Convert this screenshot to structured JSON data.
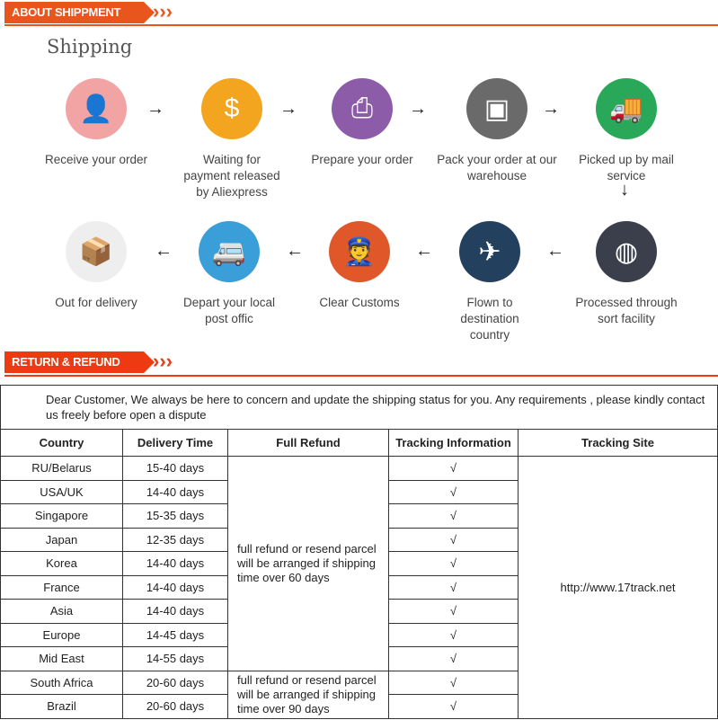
{
  "shipment_banner": "ABOUT SHIPPMENT",
  "shipping_title": "Shipping",
  "steps": [
    {
      "label": "Receive your order",
      "icon": "person-at-desk-icon",
      "color": "#f2a3a3"
    },
    {
      "label": "Waiting for payment released by Aliexpress",
      "icon": "money-bag-icon",
      "color": "#f3a51f"
    },
    {
      "label": "Prepare your order",
      "icon": "printer-icon",
      "color": "#8c5ca8"
    },
    {
      "label": "Pack your order at our warehouse",
      "icon": "package-worker-icon",
      "color": "#6a6a6a"
    },
    {
      "label": "Picked up by mail service",
      "icon": "truck-icon",
      "color": "#2aa85a"
    },
    {
      "label": "Processed through sort facility",
      "icon": "globe-icon",
      "color": "#3b3f4c"
    },
    {
      "label": "Flown to destination country",
      "icon": "airplane-icon",
      "color": "#23405e"
    },
    {
      "label": "Clear  Customs",
      "icon": "customs-officer-icon",
      "color": "#e0582a"
    },
    {
      "label": "Depart your local post offic",
      "icon": "van-icon",
      "color": "#3a9fd8"
    },
    {
      "label": "Out for delivery",
      "icon": "parcel-icon",
      "color": "#eeeeee"
    }
  ],
  "refund_banner": "RETURN & REFUND",
  "table": {
    "intro": "Dear Customer, We always be here to concern and update the shipping status for you.  Any requirements , please kindly contact us freely before open a dispute",
    "headers": [
      "Country",
      "Delivery Time",
      "Full Refund",
      "Tracking Information",
      "Tracking Site"
    ],
    "rows": [
      [
        "RU/Belarus",
        "15-40 days"
      ],
      [
        "USA/UK",
        "14-40 days"
      ],
      [
        "Singapore",
        "15-35 days"
      ],
      [
        "Japan",
        "12-35 days"
      ],
      [
        "Korea",
        "14-40 days"
      ],
      [
        "France",
        "14-40 days"
      ],
      [
        "Asia",
        "14-40 days"
      ],
      [
        "Europe",
        "14-45 days"
      ],
      [
        "Mid East",
        "14-55 days"
      ],
      [
        "South Africa",
        "20-60 days"
      ],
      [
        "Brazil",
        "20-60 days"
      ]
    ],
    "check": "√",
    "refund_60": "full refund or resend parcel will be arranged if shipping time over 60 days",
    "refund_90": "full refund or resend parcel will be arranged if shipping time over 90 days",
    "site": "http://www.17track.net"
  }
}
